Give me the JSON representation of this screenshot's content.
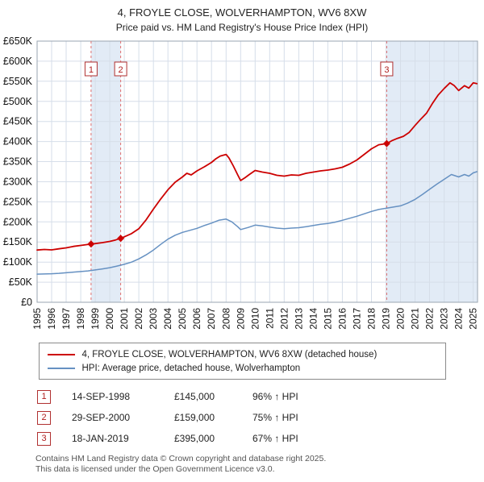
{
  "header": {
    "title": "4, FROYLE CLOSE, WOLVERHAMPTON, WV6 8XW",
    "subtitle": "Price paid vs. HM Land Registry's House Price Index (HPI)"
  },
  "sales": [
    {
      "n": "1",
      "date": "14-SEP-1998",
      "price": "£145,000",
      "hpi": "96% ↑ HPI"
    },
    {
      "n": "2",
      "date": "29-SEP-2000",
      "price": "£159,000",
      "hpi": "75% ↑ HPI"
    },
    {
      "n": "3",
      "date": "18-JAN-2019",
      "price": "£395,000",
      "hpi": "67% ↑ HPI"
    }
  ],
  "footer": {
    "line1": "Contains HM Land Registry data © Crown copyright and database right 2025.",
    "line2": "This data is licensed under the Open Government Licence v3.0."
  },
  "chart_data": {
    "type": "line",
    "title": "4, FROYLE CLOSE, WOLVERHAMPTON, WV6 8XW",
    "subtitle": "Price paid vs. HM Land Registry's House Price Index (HPI)",
    "xlim": [
      1995,
      2025.3
    ],
    "ylim": [
      0,
      650000
    ],
    "grid": true,
    "legend_position": "bottom",
    "band_color": "#e2ebf6",
    "grid_color": "#d6dee9",
    "frame_color": "#9aa4b0",
    "sale_line_color": "#e07070",
    "marker_color": "#cc0000",
    "x_ticks": [
      1995,
      1996,
      1997,
      1998,
      1999,
      2000,
      2001,
      2002,
      2003,
      2004,
      2005,
      2006,
      2007,
      2008,
      2009,
      2010,
      2011,
      2012,
      2013,
      2014,
      2015,
      2016,
      2017,
      2018,
      2019,
      2020,
      2021,
      2022,
      2023,
      2024,
      2025
    ],
    "y_ticks": [
      {
        "v": 0,
        "label": "£0"
      },
      {
        "v": 50000,
        "label": "£50K"
      },
      {
        "v": 100000,
        "label": "£100K"
      },
      {
        "v": 150000,
        "label": "£150K"
      },
      {
        "v": 200000,
        "label": "£200K"
      },
      {
        "v": 250000,
        "label": "£250K"
      },
      {
        "v": 300000,
        "label": "£300K"
      },
      {
        "v": 350000,
        "label": "£350K"
      },
      {
        "v": 400000,
        "label": "£400K"
      },
      {
        "v": 450000,
        "label": "£450K"
      },
      {
        "v": 500000,
        "label": "£500K"
      },
      {
        "v": 550000,
        "label": "£550K"
      },
      {
        "v": 600000,
        "label": "£600K"
      },
      {
        "v": 650000,
        "label": "£650K"
      }
    ],
    "bands": [
      {
        "from": 1998.71,
        "to": 2000.75
      },
      {
        "from": 2019.05,
        "to": 2025.3
      }
    ],
    "sale_points": [
      {
        "n": "1",
        "x": 1998.71,
        "y": 145000
      },
      {
        "n": "2",
        "x": 2000.75,
        "y": 159000
      },
      {
        "n": "3",
        "x": 2019.05,
        "y": 395000
      }
    ],
    "series": [
      {
        "name": "4, FROYLE CLOSE, WOLVERHAMPTON, WV6 8XW (detached house)",
        "color": "#cc0000",
        "width": 1.8,
        "points": [
          [
            1995,
            130000
          ],
          [
            1995.5,
            131500
          ],
          [
            1996,
            130500
          ],
          [
            1996.5,
            133000
          ],
          [
            1997,
            135500
          ],
          [
            1997.5,
            139000
          ],
          [
            1998,
            141500
          ],
          [
            1998.4,
            143500
          ],
          [
            1998.71,
            145000
          ],
          [
            1999,
            146000
          ],
          [
            1999.5,
            148500
          ],
          [
            2000,
            151500
          ],
          [
            2000.4,
            155000
          ],
          [
            2000.75,
            159000
          ],
          [
            2001,
            163000
          ],
          [
            2001.5,
            171000
          ],
          [
            2002,
            183000
          ],
          [
            2002.5,
            205000
          ],
          [
            2003,
            232000
          ],
          [
            2003.5,
            257000
          ],
          [
            2004,
            280000
          ],
          [
            2004.5,
            299000
          ],
          [
            2005,
            312000
          ],
          [
            2005.3,
            321000
          ],
          [
            2005.6,
            317000
          ],
          [
            2006,
            327000
          ],
          [
            2006.5,
            337000
          ],
          [
            2007,
            348000
          ],
          [
            2007.3,
            357000
          ],
          [
            2007.6,
            364000
          ],
          [
            2008,
            368000
          ],
          [
            2008.2,
            359000
          ],
          [
            2008.5,
            339000
          ],
          [
            2008.8,
            317000
          ],
          [
            2009,
            303000
          ],
          [
            2009.3,
            310000
          ],
          [
            2009.6,
            318000
          ],
          [
            2010,
            328000
          ],
          [
            2010.5,
            324000
          ],
          [
            2011,
            321000
          ],
          [
            2011.5,
            316000
          ],
          [
            2012,
            314000
          ],
          [
            2012.5,
            317000
          ],
          [
            2013,
            316000
          ],
          [
            2013.5,
            321000
          ],
          [
            2014,
            324000
          ],
          [
            2014.5,
            327000
          ],
          [
            2015,
            329000
          ],
          [
            2015.5,
            332000
          ],
          [
            2016,
            336000
          ],
          [
            2016.5,
            344000
          ],
          [
            2017,
            354000
          ],
          [
            2017.5,
            368000
          ],
          [
            2018,
            382000
          ],
          [
            2018.5,
            392000
          ],
          [
            2019.05,
            395000
          ],
          [
            2019.4,
            402000
          ],
          [
            2019.8,
            408000
          ],
          [
            2020.2,
            413000
          ],
          [
            2020.6,
            423000
          ],
          [
            2021,
            440000
          ],
          [
            2021.4,
            456000
          ],
          [
            2021.8,
            471000
          ],
          [
            2022.2,
            495000
          ],
          [
            2022.6,
            516000
          ],
          [
            2023,
            532000
          ],
          [
            2023.4,
            546000
          ],
          [
            2023.7,
            539000
          ],
          [
            2024,
            527000
          ],
          [
            2024.4,
            539000
          ],
          [
            2024.7,
            533000
          ],
          [
            2025,
            546000
          ],
          [
            2025.25,
            544000
          ]
        ]
      },
      {
        "name": "HPI: Average price, detached house, Wolverhampton",
        "color": "#6691c2",
        "width": 1.5,
        "points": [
          [
            1995,
            70000
          ],
          [
            1995.5,
            70500
          ],
          [
            1996,
            71000
          ],
          [
            1996.5,
            72000
          ],
          [
            1997,
            73500
          ],
          [
            1997.5,
            75000
          ],
          [
            1998,
            76500
          ],
          [
            1998.5,
            78000
          ],
          [
            1999,
            80500
          ],
          [
            1999.5,
            83000
          ],
          [
            2000,
            86000
          ],
          [
            2000.5,
            90000
          ],
          [
            2001,
            94500
          ],
          [
            2001.5,
            100000
          ],
          [
            2002,
            108000
          ],
          [
            2002.5,
            118000
          ],
          [
            2003,
            130000
          ],
          [
            2003.5,
            144000
          ],
          [
            2004,
            157000
          ],
          [
            2004.5,
            167000
          ],
          [
            2005,
            174000
          ],
          [
            2005.5,
            179000
          ],
          [
            2006,
            184000
          ],
          [
            2006.5,
            191000
          ],
          [
            2007,
            197000
          ],
          [
            2007.5,
            204000
          ],
          [
            2008,
            207000
          ],
          [
            2008.4,
            200000
          ],
          [
            2008.8,
            188000
          ],
          [
            2009,
            181000
          ],
          [
            2009.5,
            186000
          ],
          [
            2010,
            192000
          ],
          [
            2010.5,
            190000
          ],
          [
            2011,
            187000
          ],
          [
            2011.5,
            184500
          ],
          [
            2012,
            183000
          ],
          [
            2012.5,
            184500
          ],
          [
            2013,
            185500
          ],
          [
            2013.5,
            188000
          ],
          [
            2014,
            191000
          ],
          [
            2014.5,
            194000
          ],
          [
            2015,
            196000
          ],
          [
            2015.5,
            199500
          ],
          [
            2016,
            204000
          ],
          [
            2016.5,
            209000
          ],
          [
            2017,
            214000
          ],
          [
            2017.5,
            220000
          ],
          [
            2018,
            226000
          ],
          [
            2018.5,
            231000
          ],
          [
            2019,
            234000
          ],
          [
            2019.5,
            237000
          ],
          [
            2020,
            240000
          ],
          [
            2020.5,
            247000
          ],
          [
            2021,
            256000
          ],
          [
            2021.5,
            268000
          ],
          [
            2022,
            281000
          ],
          [
            2022.5,
            294000
          ],
          [
            2023,
            306000
          ],
          [
            2023.5,
            318000
          ],
          [
            2024,
            312000
          ],
          [
            2024.4,
            318000
          ],
          [
            2024.7,
            314000
          ],
          [
            2025,
            322000
          ],
          [
            2025.25,
            325000
          ]
        ]
      }
    ]
  }
}
